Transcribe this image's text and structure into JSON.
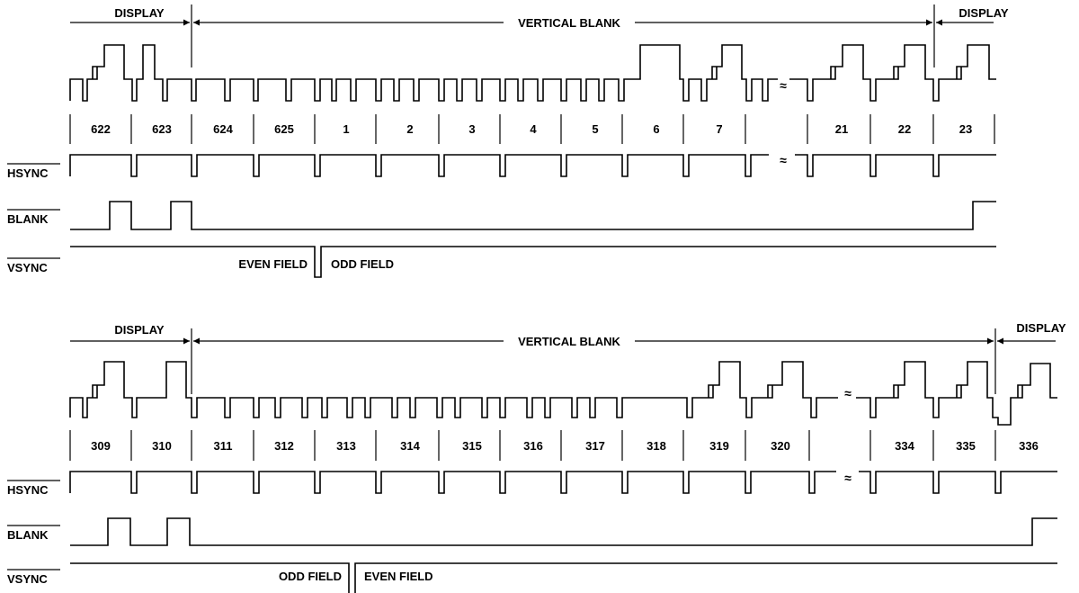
{
  "colors": {
    "ink": "#000000",
    "background": "#ffffff"
  },
  "top": {
    "labels": {
      "display_left": "DISPLAY",
      "vertical_blank": "VERTICAL BLANK",
      "display_right": "DISPLAY",
      "field_before": "EVEN FIELD",
      "field_after": "ODD FIELD"
    },
    "lines": [
      "622",
      "623",
      "624",
      "625",
      "1",
      "2",
      "3",
      "4",
      "5",
      "6",
      "7",
      "",
      "21",
      "22",
      "23"
    ],
    "signals": [
      "HSYNC",
      "BLANK",
      "VSYNC"
    ]
  },
  "bottom": {
    "labels": {
      "display_left": "DISPLAY",
      "vertical_blank": "VERTICAL BLANK",
      "display_right": "DISPLAY",
      "field_before": "ODD FIELD",
      "field_after": "EVEN FIELD"
    },
    "lines": [
      "309",
      "310",
      "311",
      "312",
      "313",
      "314",
      "315",
      "316",
      "317",
      "318",
      "319",
      "320",
      "",
      "334",
      "335",
      "336"
    ],
    "signals": [
      "HSYNC",
      "BLANK",
      "VSYNC"
    ]
  }
}
